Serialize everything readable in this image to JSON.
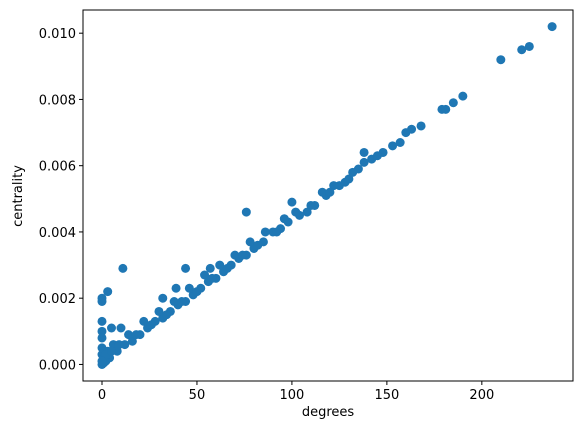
{
  "chart_data": {
    "type": "scatter",
    "x_label": "degrees",
    "y_label": "centrality",
    "color": "#1f77b4",
    "x": [
      0,
      0,
      0,
      0,
      0,
      3,
      11,
      44,
      76,
      32,
      39,
      57,
      100,
      138,
      5,
      10,
      210,
      221,
      225,
      237,
      179,
      181,
      185,
      190,
      163,
      168,
      160,
      157,
      153,
      148,
      142,
      138,
      135,
      130,
      125,
      118,
      112,
      108,
      104,
      98,
      94,
      90,
      85,
      80,
      76,
      72,
      68,
      64,
      60,
      56,
      52,
      48,
      44,
      40,
      36,
      32,
      28,
      24,
      20,
      16,
      12,
      8,
      4,
      2,
      1,
      0,
      0,
      0,
      6,
      14,
      22,
      30,
      38,
      46,
      54,
      62,
      70,
      78,
      86,
      96,
      102,
      116,
      122,
      132,
      128,
      3,
      7,
      18,
      26,
      34,
      42,
      50,
      58,
      66,
      74,
      82,
      92,
      110,
      120,
      145,
      1,
      2,
      0,
      5,
      9
    ],
    "values": [
      0.002,
      0.0019,
      0.0013,
      0.001,
      0.0008,
      0.0022,
      0.0029,
      0.0029,
      0.0046,
      0.002,
      0.0023,
      0.0029,
      0.0049,
      0.0064,
      0.0011,
      0.0011,
      0.0092,
      0.0095,
      0.0096,
      0.0102,
      0.0077,
      0.0077,
      0.0079,
      0.0081,
      0.0071,
      0.0072,
      0.007,
      0.0067,
      0.0066,
      0.0064,
      0.0062,
      0.0061,
      0.0059,
      0.0056,
      0.0054,
      0.0051,
      0.0048,
      0.0046,
      0.0045,
      0.0043,
      0.0041,
      0.004,
      0.0037,
      0.0035,
      0.0033,
      0.0032,
      0.003,
      0.0028,
      0.0026,
      0.0025,
      0.0023,
      0.0021,
      0.0019,
      0.0018,
      0.0016,
      0.0014,
      0.0013,
      0.0011,
      0.0009,
      0.0007,
      0.0006,
      0.0004,
      0.0002,
      0.0001,
      5e-05,
      0,
      0.0003,
      0.0005,
      0.0006,
      0.0009,
      0.0013,
      0.0016,
      0.0019,
      0.0023,
      0.0027,
      0.003,
      0.0033,
      0.0037,
      0.004,
      0.0044,
      0.0046,
      0.0052,
      0.0054,
      0.0058,
      0.0055,
      0.0004,
      0.0005,
      0.0009,
      0.0012,
      0.0015,
      0.0019,
      0.0022,
      0.0026,
      0.0029,
      0.0033,
      0.0036,
      0.004,
      0.0048,
      0.0052,
      0.0063,
      0.0002,
      0.0003,
      0.0001,
      0.0004,
      0.0006
    ],
    "xlim": [
      -10,
      248
    ],
    "ylim": [
      -0.0005,
      0.0107
    ],
    "xticks": [
      0,
      50,
      100,
      150,
      200
    ],
    "yticks": [
      {
        "value": 0,
        "label": "0.000"
      },
      {
        "value": 0.002,
        "label": "0.002"
      },
      {
        "value": 0.004,
        "label": "0.004"
      },
      {
        "value": 0.006,
        "label": "0.006"
      },
      {
        "value": 0.008,
        "label": "0.008"
      },
      {
        "value": 0.01,
        "label": "0.010"
      }
    ]
  }
}
